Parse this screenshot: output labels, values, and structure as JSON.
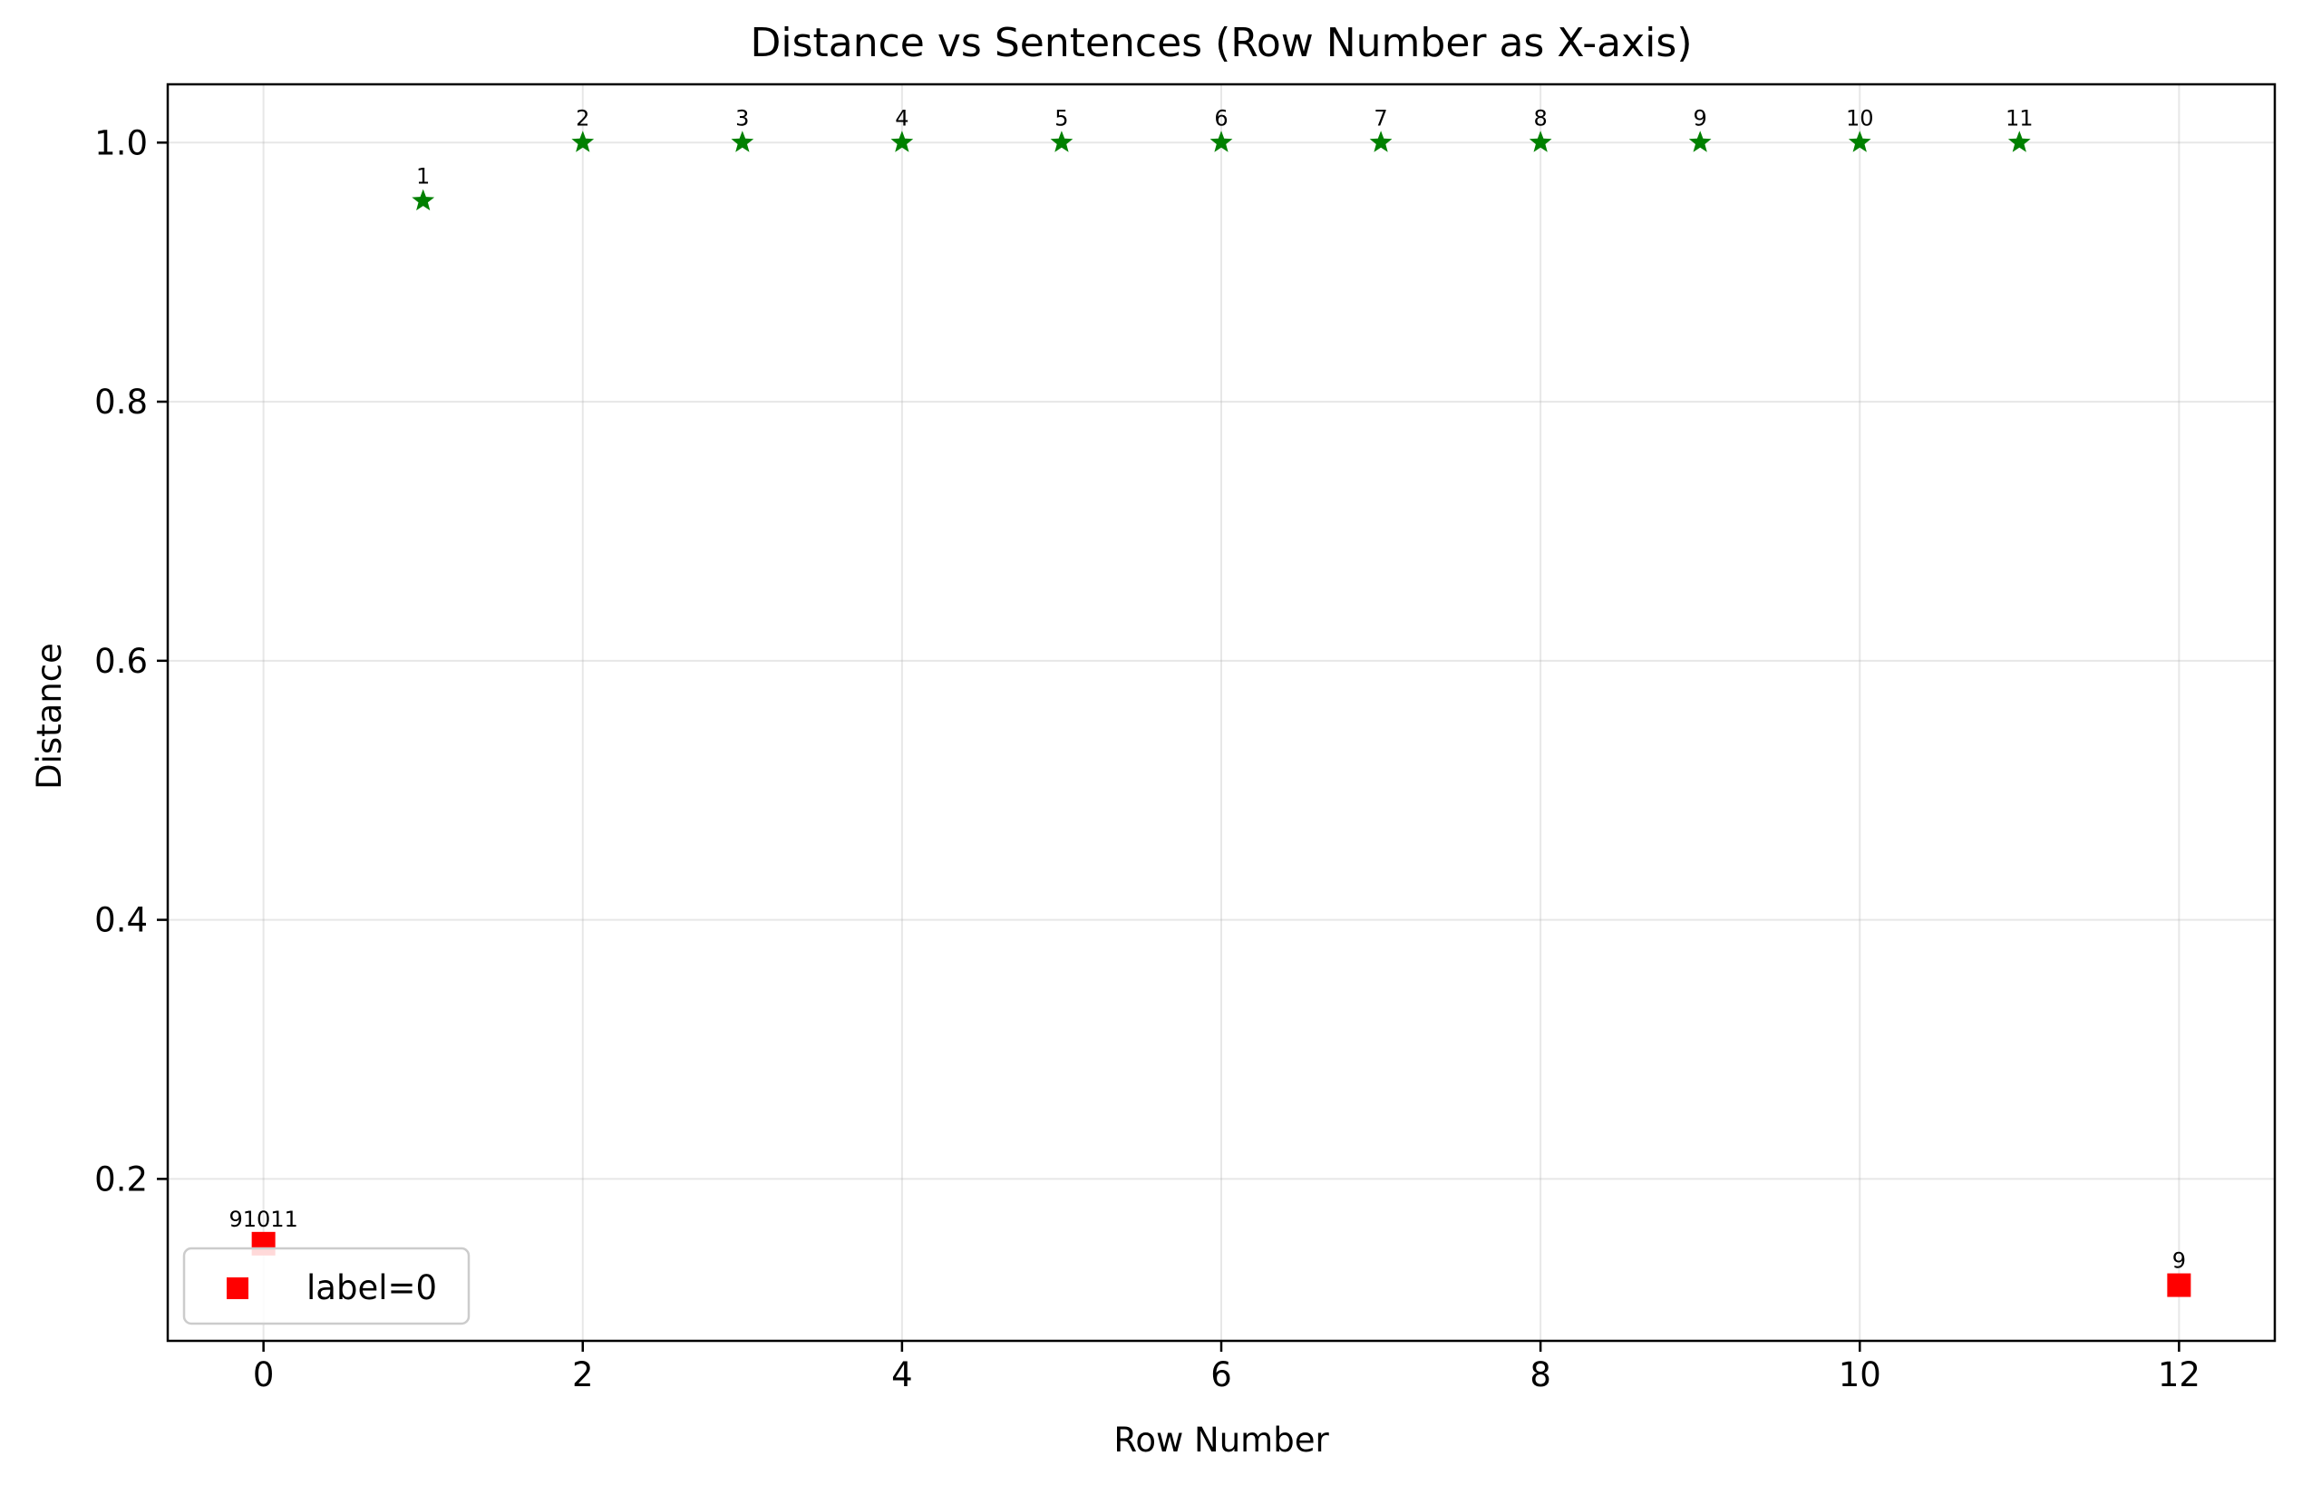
{
  "chart_data": {
    "type": "scatter",
    "title": "Distance vs Sentences (Row Number as X-axis)",
    "xlabel": "Row Number",
    "ylabel": "Distance",
    "xlim": [
      -0.6,
      12.6
    ],
    "ylim": [
      0.075,
      1.045
    ],
    "xticks": [
      0,
      2,
      4,
      6,
      8,
      10,
      12
    ],
    "xtick_labels": [
      "0",
      "2",
      "4",
      "6",
      "8",
      "10",
      "12"
    ],
    "yticks": [
      0.2,
      0.4,
      0.6,
      0.8,
      1.0
    ],
    "ytick_labels": [
      "0.2",
      "0.4",
      "0.6",
      "0.8",
      "1.0"
    ],
    "grid": true,
    "legend_position": "bottom-left",
    "series": [
      {
        "marker": "star",
        "color": "#008000",
        "points": [
          {
            "x": 1,
            "y": 0.955,
            "label": "1"
          },
          {
            "x": 2,
            "y": 1.0,
            "label": "2"
          },
          {
            "x": 3,
            "y": 1.0,
            "label": "3"
          },
          {
            "x": 4,
            "y": 1.0,
            "label": "4"
          },
          {
            "x": 5,
            "y": 1.0,
            "label": "5"
          },
          {
            "x": 6,
            "y": 1.0,
            "label": "6"
          },
          {
            "x": 7,
            "y": 1.0,
            "label": "7"
          },
          {
            "x": 8,
            "y": 1.0,
            "label": "8"
          },
          {
            "x": 9,
            "y": 1.0,
            "label": "9"
          },
          {
            "x": 10,
            "y": 1.0,
            "label": "10"
          },
          {
            "x": 11,
            "y": 1.0,
            "label": "11"
          }
        ]
      },
      {
        "name": "label=0",
        "marker": "square",
        "color": "#ff0000",
        "points": [
          {
            "x": 0,
            "y": 0.15,
            "label": "91011"
          },
          {
            "x": 12,
            "y": 0.118,
            "label": "9"
          }
        ]
      }
    ]
  }
}
